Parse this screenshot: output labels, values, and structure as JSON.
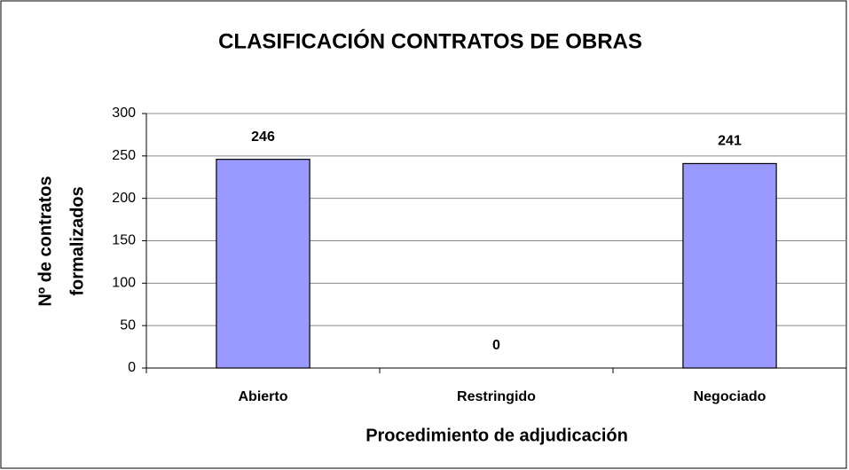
{
  "chart_data": {
    "type": "bar",
    "title": "CLASIFICACIÓN CONTRATOS DE OBRAS",
    "xlabel": "Procedimiento de adjudicación",
    "ylabel": [
      "Nº de contratos",
      "formalizados"
    ],
    "categories": [
      "Abierto",
      "Restringido",
      "Negociado"
    ],
    "values": [
      246,
      0,
      241
    ],
    "color": "#9999ff",
    "ylim": [
      0,
      300
    ],
    "yticks": [
      0,
      50,
      100,
      150,
      200,
      250,
      300
    ],
    "grid": true
  }
}
